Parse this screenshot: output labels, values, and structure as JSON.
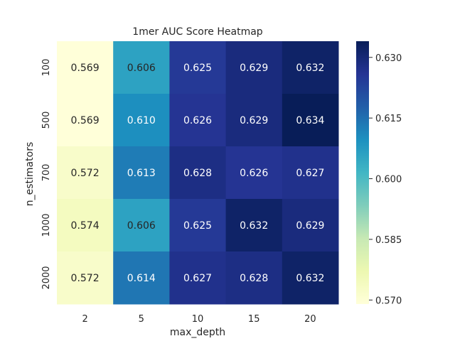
{
  "chart_data": {
    "type": "heatmap",
    "title": "1mer AUC Score Heatmap",
    "xlabel": "max_depth",
    "ylabel": "n_estimators",
    "x_categories": [
      "2",
      "5",
      "10",
      "15",
      "20"
    ],
    "y_categories": [
      "100",
      "500",
      "700",
      "1000",
      "2000"
    ],
    "values": [
      [
        0.569,
        0.606,
        0.625,
        0.629,
        0.632
      ],
      [
        0.569,
        0.61,
        0.626,
        0.629,
        0.634
      ],
      [
        0.572,
        0.613,
        0.628,
        0.626,
        0.627
      ],
      [
        0.574,
        0.606,
        0.625,
        0.632,
        0.629
      ],
      [
        0.572,
        0.614,
        0.627,
        0.628,
        0.632
      ]
    ],
    "value_format": "0.000",
    "colormap": "YlGnBu",
    "colormap_stops": [
      "#ffffd9",
      "#edf8b1",
      "#c7e9b4",
      "#7fcdbb",
      "#41b6c4",
      "#1d91c0",
      "#225ea8",
      "#253494",
      "#081d58"
    ],
    "vmin": 0.569,
    "vmax": 0.634,
    "colorbar_ticks": [
      "0.570",
      "0.585",
      "0.600",
      "0.615",
      "0.630"
    ],
    "grid": false,
    "annotations_shown": true
  }
}
